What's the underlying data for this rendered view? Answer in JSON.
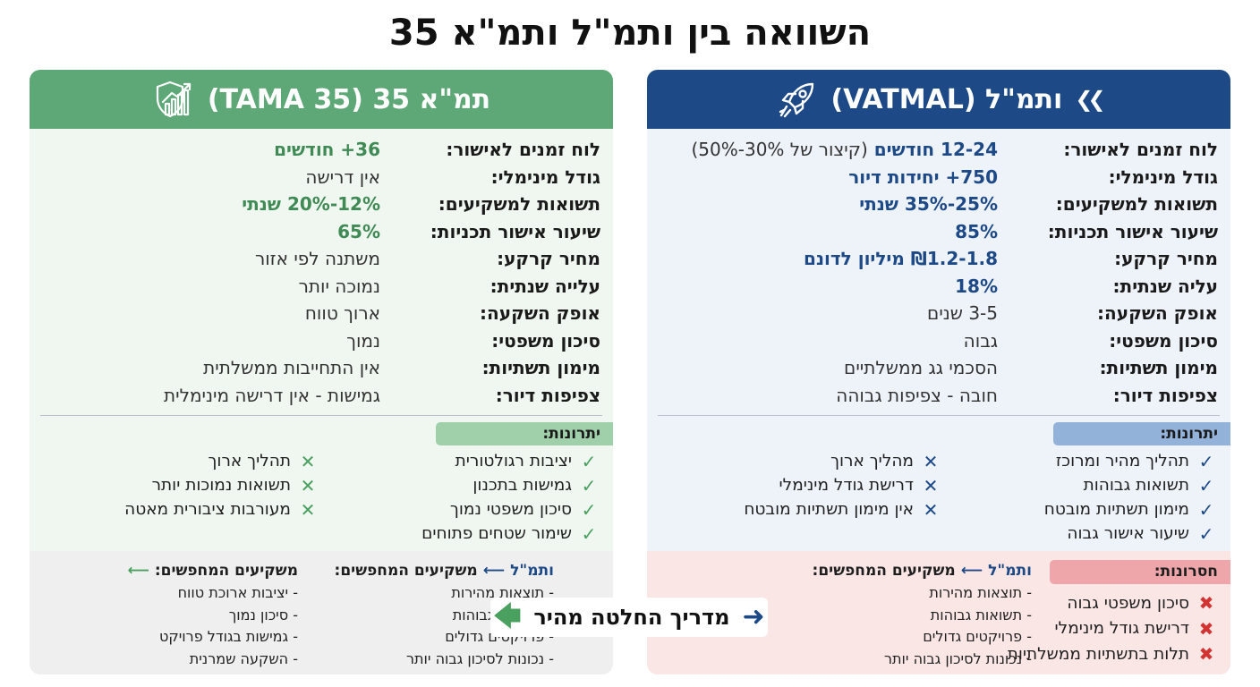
{
  "title": "השוואה בין ותמ\"ל ותמ\"א 35",
  "colors": {
    "vatmal": "#1d4987",
    "tama": "#5ea878",
    "disadvantage": "#d23434"
  },
  "vatmal": {
    "header": "ותמ\"ל (VATMAL)",
    "header_icons": [
      "double-chevron-icon",
      "rocket-icon"
    ],
    "rows": [
      {
        "label": "לוח זמנים לאישור:",
        "value": "12-24 חודשים",
        "note": "(קיצור של 30%-50%)"
      },
      {
        "label": "גודל מינימלי:",
        "value": "750+ יחידות דיור"
      },
      {
        "label": "תשואות למשקיעים:",
        "value": "25%-35% שנתי"
      },
      {
        "label": "שיעור אישור תכניות:",
        "value": "85%"
      },
      {
        "label": "מחיר קרקע:",
        "value": "₪1.2-1.8 מיליון לדונם"
      },
      {
        "label": "עליה שנתית:",
        "value": "18%"
      },
      {
        "label": "אופק השקעה:",
        "value": "3-5 שנים"
      },
      {
        "label": "סיכון משפטי:",
        "value": "גבוה"
      },
      {
        "label": "מימון תשתיות:",
        "value": "הסכמי גג ממשלתיים"
      },
      {
        "label": "צפיפות דיור:",
        "value": "חובה - צפיפות גבוהה"
      }
    ],
    "advantages_label": "יתרונות:",
    "advantages": [
      "תהליך מהיר ומרוכז",
      "תשואות גבוהות",
      "מימון תשתיות מובטח",
      "שיעור אישור גבוה"
    ],
    "cons": [
      "מהליך ארוך",
      "דרישת גודל מינימלי",
      "אין מימון תשתיות מובטח"
    ],
    "disadvantages_label": "חסרונות:",
    "disadvantages": [
      "סיכון משפטי גבוה",
      "דרישת גודל מינימלי",
      "תלות בתשתיות ממשלתיות"
    ],
    "guide": {
      "name": "ותמ\"ל",
      "heading": "משקיעים המחפשים:",
      "lines": [
        "- תוצאות מהירות",
        "- תשואות גבוהות",
        "- פרויקטים גדולים",
        "- נכונות לסיכון גבוה יותר"
      ]
    }
  },
  "tama": {
    "header": "תמ\"א 35 (TAMA 35)",
    "header_icons": [
      "shield-chart-icon"
    ],
    "rows": [
      {
        "label": "לוח זמנים לאישור:",
        "value": "36+ חודשים"
      },
      {
        "label": "גודל מינימלי:",
        "value": "אין דרישה"
      },
      {
        "label": "תשואות למשקיעים:",
        "value": "12%-20% שנתי"
      },
      {
        "label": "שיעור אישור תכניות:",
        "value": "65%"
      },
      {
        "label": "מחיר קרקע:",
        "value": "משתנה לפי אזור"
      },
      {
        "label": "עלייה שנתית:",
        "value": "נמוכה יותר"
      },
      {
        "label": "אופק השקעה:",
        "value": "ארוך טווח"
      },
      {
        "label": "סיכון משפטי:",
        "value": "נמוך"
      },
      {
        "label": "מימון תשתיות:",
        "value": "אין התחייבות ממשלתית"
      },
      {
        "label": "צפיפות דיור:",
        "value": "גמישות - אין דרישה מינימלית"
      }
    ],
    "advantages_label": "יתרונות:",
    "advantages": [
      "יציבות רגולטורית",
      "גמישות בתכנון",
      "סיכון משפטי נמוך",
      "שימור שטחים פתוחים"
    ],
    "cons": [
      "תהליך ארוך",
      "תשואות נמוכות יותר",
      "מעורבות ציבורית מאטה"
    ],
    "guide_vat": {
      "name": "ותמ\"ל",
      "heading": "משקיעים המחפשים:",
      "lines": [
        "- תוצאות מהירות",
        "- תשואות גבוהות",
        "- פרויקטים גדולים",
        "- נכונות לסיכון גבוה יותר"
      ]
    },
    "guide": {
      "heading": "משקיעים המחפשים:",
      "lines": [
        "- יציבות ארוכת טווח",
        "- סיכון נמוך",
        "- גמישות בגודל פרויקט",
        "- השקעה שמרנית"
      ]
    }
  },
  "quick_guide": "מדריך החלטה מהיר"
}
